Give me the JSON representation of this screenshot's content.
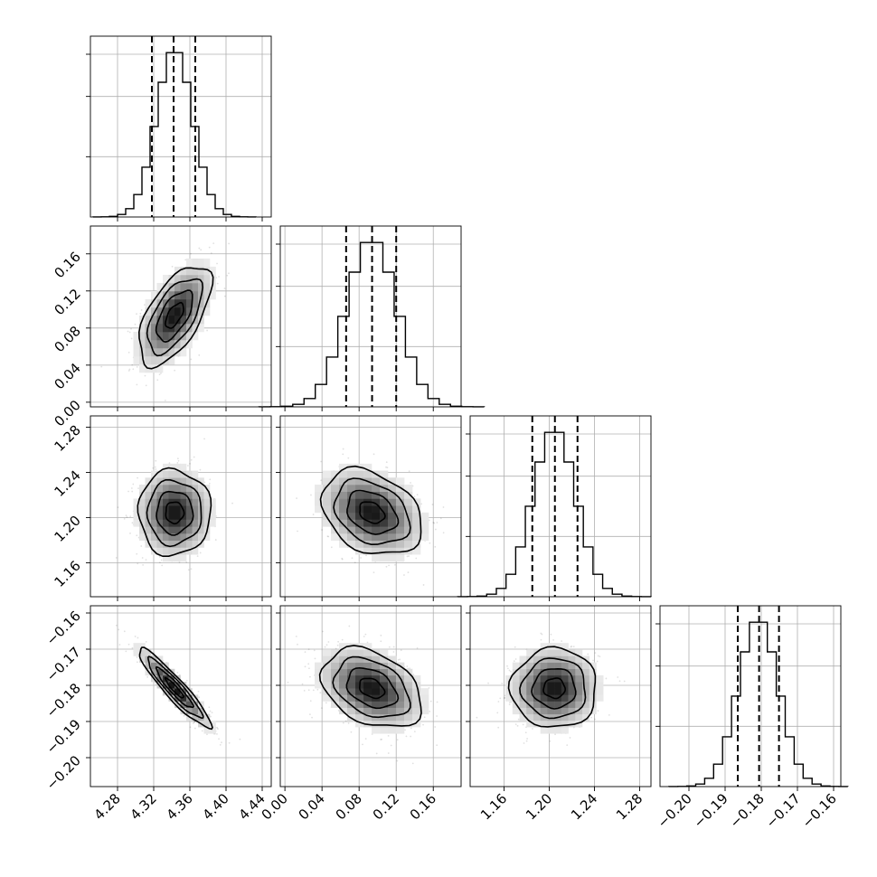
{
  "chart_data": {
    "type": "corner",
    "parameters": [
      {
        "range": [
          4.25,
          4.45
        ],
        "mean": 4.343,
        "sd": 0.02,
        "ticks": [
          "4.28",
          "4.32",
          "4.36",
          "4.40",
          "4.44"
        ],
        "quantiles": [
          4.318,
          4.342,
          4.366
        ]
      },
      {
        "range": [
          -0.005,
          0.19
        ],
        "mean": 0.0935,
        "sd": 0.027,
        "ticks": [
          "0.00",
          "0.04",
          "0.08",
          "0.12",
          "0.16"
        ],
        "quantiles": [
          0.066,
          0.094,
          0.12
        ]
      },
      {
        "range": [
          1.13,
          1.29
        ],
        "mean": 1.2045,
        "sd": 0.019,
        "ticks": [
          "1.16",
          "1.20",
          "1.24",
          "1.28"
        ],
        "quantiles": [
          1.185,
          1.205,
          1.225
        ]
      },
      {
        "range": [
          -0.208,
          -0.158
        ],
        "mean": -0.1808,
        "sd": 0.0055,
        "ticks": [
          "−0.20",
          "−0.19",
          "−0.18",
          "−0.17",
          "−0.16"
        ],
        "quantiles": [
          -0.1865,
          -0.1806,
          -0.1751
        ]
      }
    ],
    "y_ticks": {
      "1": [
        "0.00",
        "0.04",
        "0.08",
        "0.12",
        "0.16"
      ],
      "2": [
        "1.16",
        "1.20",
        "1.24",
        "1.28"
      ],
      "3": [
        "−0.20",
        "−0.19",
        "−0.18",
        "−0.17",
        "−0.16"
      ]
    },
    "tick_values": [
      [
        4.28,
        4.32,
        4.36,
        4.4,
        4.44
      ],
      [
        0.0,
        0.04,
        0.08,
        0.12,
        0.16
      ],
      [
        1.16,
        1.2,
        1.24,
        1.28
      ],
      [
        -0.2,
        -0.19,
        -0.18,
        -0.17,
        -0.16
      ]
    ],
    "correlations": [
      [
        1.0,
        0.6,
        0.0,
        -0.93
      ],
      [
        0.6,
        1.0,
        -0.3,
        -0.35
      ],
      [
        0.0,
        -0.3,
        1.0,
        0.0
      ],
      [
        -0.93,
        -0.35,
        0.0,
        1.0
      ]
    ],
    "histogram_bins": 20,
    "contour_levels_sigma": [
      0.5,
      1.0,
      1.5,
      2.0
    ],
    "grid": true,
    "title": "",
    "xlabel": "",
    "ylabel": ""
  }
}
